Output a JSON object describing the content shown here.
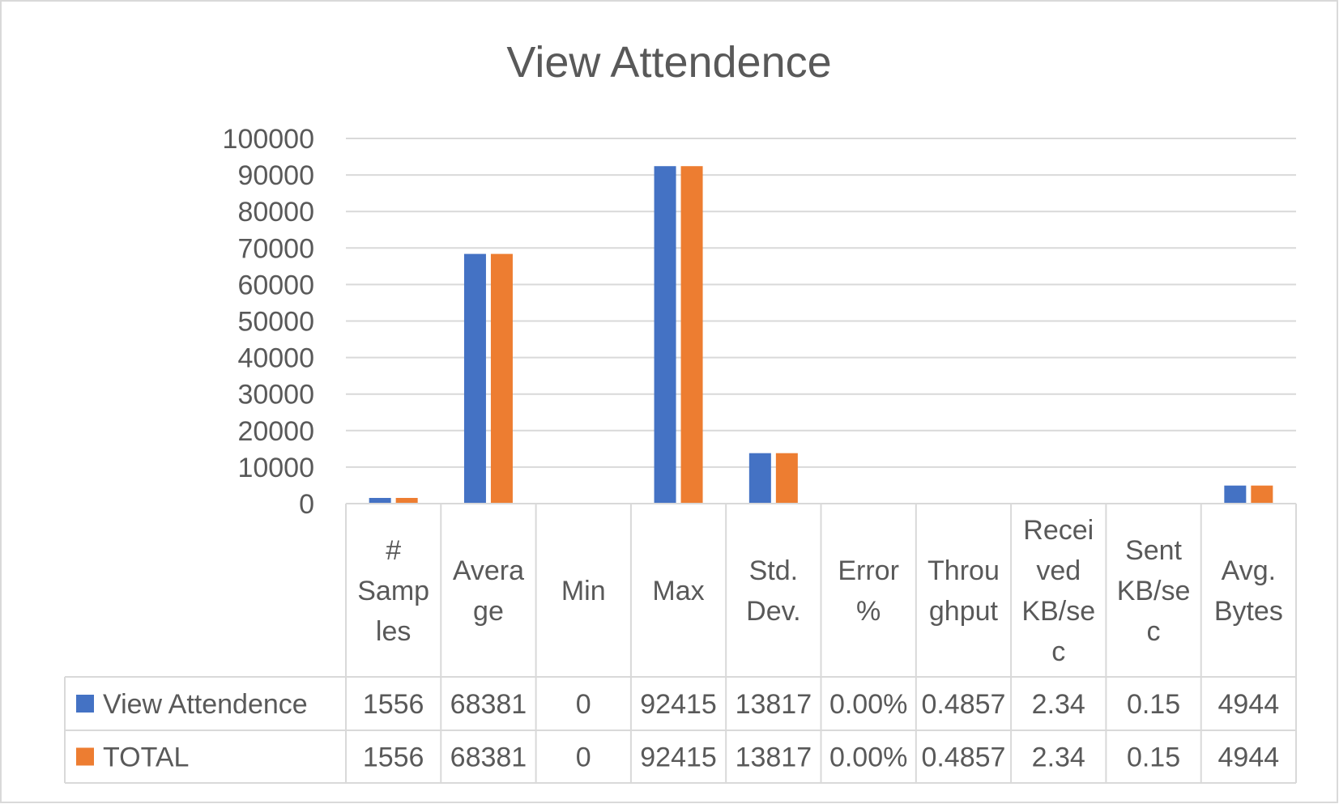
{
  "chart_data": {
    "type": "bar",
    "title": "View Attendence",
    "categories": [
      "# Samples",
      "Average",
      "Min",
      "Max",
      "Std. Dev.",
      "Error %",
      "Throughput",
      "Received KB/sec",
      "Sent KB/sec",
      "Avg. Bytes"
    ],
    "category_label_lines": [
      [
        "#",
        "Samp",
        "les"
      ],
      [
        "Avera",
        "ge"
      ],
      [
        "Min"
      ],
      [
        "Max"
      ],
      [
        "Std.",
        "Dev."
      ],
      [
        "Error",
        "%"
      ],
      [
        "Throu",
        "ghput"
      ],
      [
        "Recei",
        "ved",
        "KB/se",
        "c"
      ],
      [
        "Sent",
        "KB/se",
        "c"
      ],
      [
        "Avg.",
        "Bytes"
      ]
    ],
    "ylim": [
      0,
      100000
    ],
    "yticks": [
      0,
      10000,
      20000,
      30000,
      40000,
      50000,
      60000,
      70000,
      80000,
      90000,
      100000
    ],
    "grid": true,
    "legend": "data-table",
    "series": [
      {
        "name": "View Attendence",
        "color": "#4472C4",
        "values": [
          1556,
          68381,
          0,
          92415,
          13817,
          0,
          0.4857,
          2.34,
          0.15,
          4944
        ],
        "table_labels": [
          "1556",
          "68381",
          "0",
          "92415",
          "13817",
          "0.00%",
          "0.4857",
          "2.34",
          "0.15",
          "4944"
        ]
      },
      {
        "name": "TOTAL",
        "color": "#ED7D31",
        "values": [
          1556,
          68381,
          0,
          92415,
          13817,
          0,
          0.4857,
          2.34,
          0.15,
          4944
        ],
        "table_labels": [
          "1556",
          "68381",
          "0",
          "92415",
          "13817",
          "0.00%",
          "0.4857",
          "2.34",
          "0.15",
          "4944"
        ]
      }
    ]
  }
}
